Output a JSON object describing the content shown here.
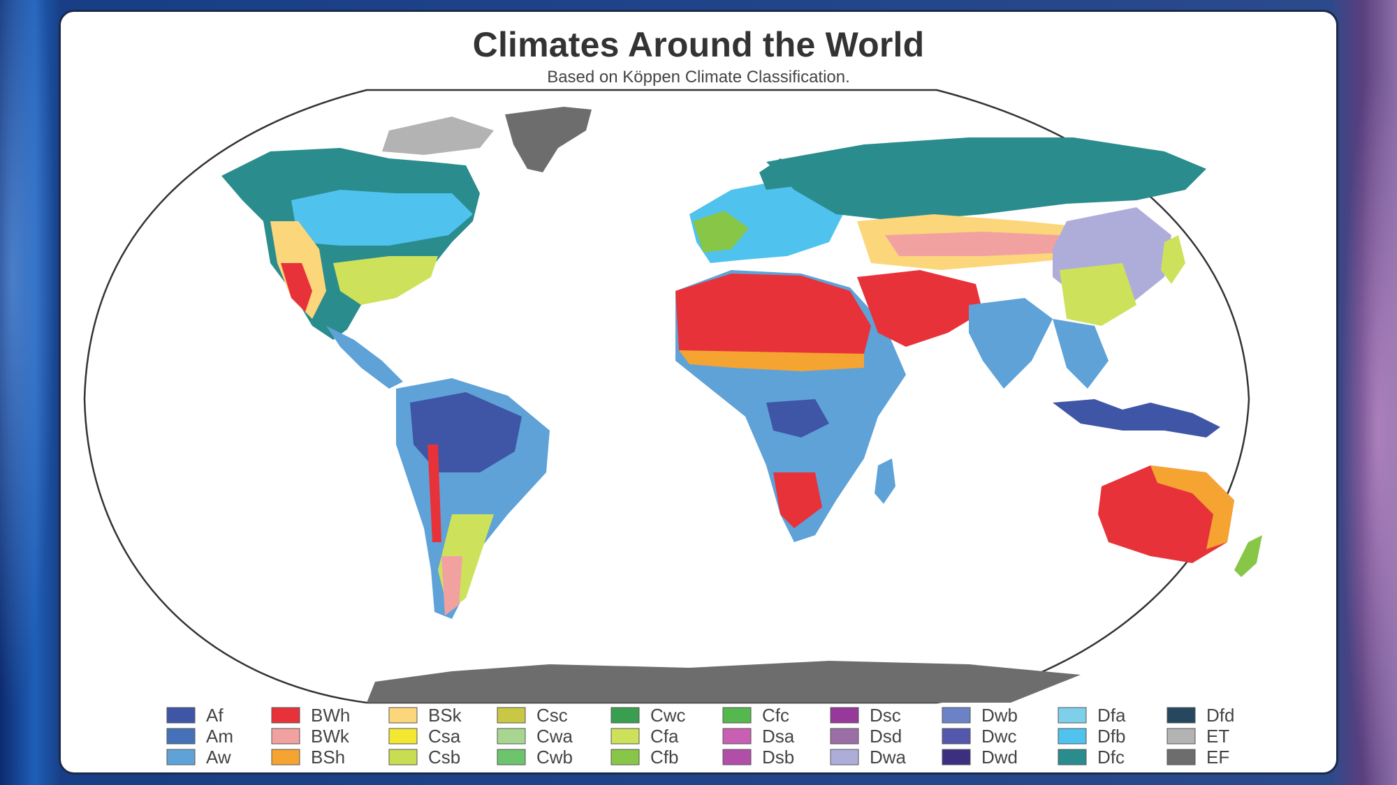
{
  "title": "Climates Around the World",
  "subtitle": "Based on Köppen Climate Classification.",
  "legend": [
    [
      {
        "code": "Af",
        "color": "#3f55a6"
      },
      {
        "code": "Am",
        "color": "#4471b8"
      },
      {
        "code": "Aw",
        "color": "#5ea2d8"
      }
    ],
    [
      {
        "code": "BWh",
        "color": "#e8323a"
      },
      {
        "code": "BWk",
        "color": "#f2a1a1"
      },
      {
        "code": "BSh",
        "color": "#f5a331"
      }
    ],
    [
      {
        "code": "BSk",
        "color": "#fcd67a"
      },
      {
        "code": "Csa",
        "color": "#f4e732"
      },
      {
        "code": "Csb",
        "color": "#c9dd52"
      }
    ],
    [
      {
        "code": "Csc",
        "color": "#c8c844"
      },
      {
        "code": "Cwa",
        "color": "#a8d690"
      },
      {
        "code": "Cwb",
        "color": "#6cc46c"
      }
    ],
    [
      {
        "code": "Cwc",
        "color": "#3a9e50"
      },
      {
        "code": "Cfa",
        "color": "#cde25a"
      },
      {
        "code": "Cfb",
        "color": "#88c648"
      }
    ],
    [
      {
        "code": "Cfc",
        "color": "#55b84e"
      },
      {
        "code": "Dsa",
        "color": "#c85fb2"
      },
      {
        "code": "Dsb",
        "color": "#b14ea8"
      }
    ],
    [
      {
        "code": "Dsc",
        "color": "#96399a"
      },
      {
        "code": "Dsd",
        "color": "#9b6ea6"
      },
      {
        "code": "Dwa",
        "color": "#aeadda"
      }
    ],
    [
      {
        "code": "Dwb",
        "color": "#6b82c6"
      },
      {
        "code": "Dwc",
        "color": "#5458ad"
      },
      {
        "code": "Dwd",
        "color": "#3c2f80"
      }
    ],
    [
      {
        "code": "Dfa",
        "color": "#7ed0ea"
      },
      {
        "code": "Dfb",
        "color": "#4fc2ee"
      },
      {
        "code": "Dfc",
        "color": "#2a8c8c"
      }
    ],
    [
      {
        "code": "Dfd",
        "color": "#25485e"
      },
      {
        "code": "ET",
        "color": "#b3b3b3"
      },
      {
        "code": "EF",
        "color": "#6d6d6d"
      }
    ]
  ]
}
